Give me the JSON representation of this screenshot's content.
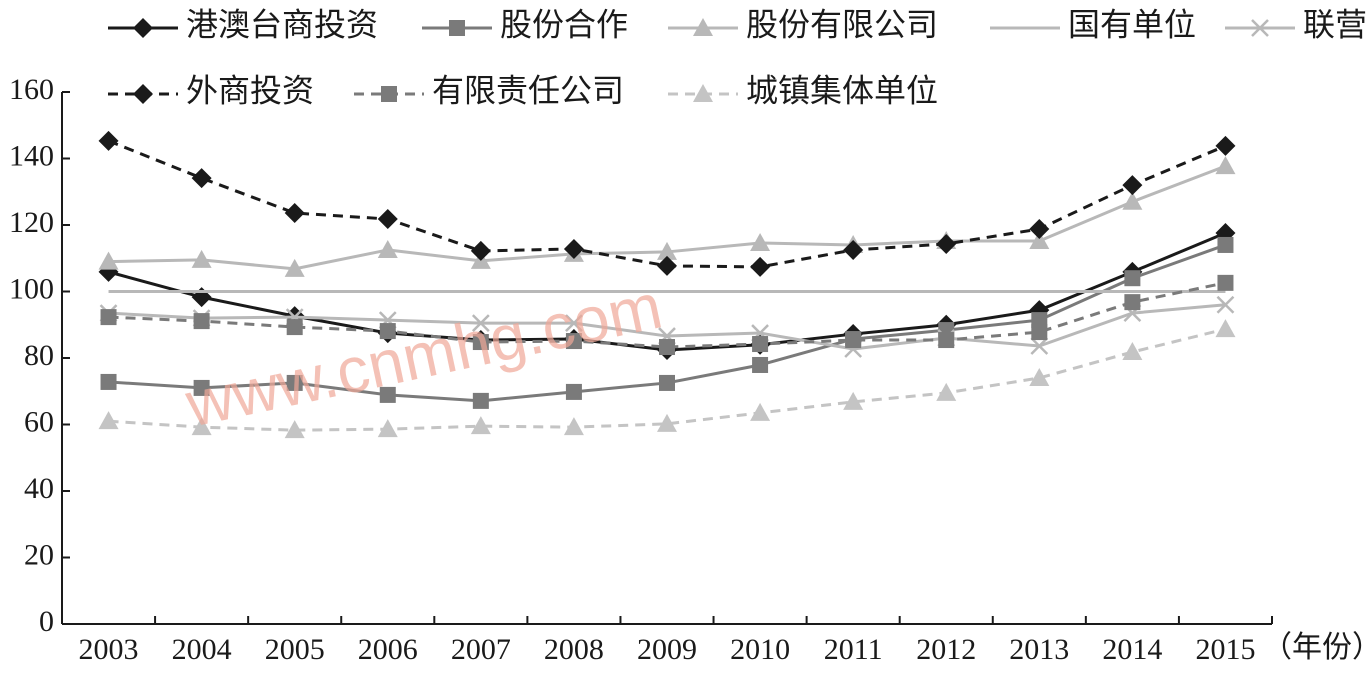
{
  "chart_data": {
    "type": "line",
    "x_label": "（年份）",
    "watermark": "www.cnmhg.com",
    "categories": [
      "2003",
      "2004",
      "2005",
      "2006",
      "2007",
      "2008",
      "2009",
      "2010",
      "2011",
      "2012",
      "2013",
      "2014",
      "2015"
    ],
    "ylim": [
      0,
      160
    ],
    "yticks": [
      0,
      20,
      40,
      60,
      80,
      100,
      120,
      140,
      160
    ],
    "series": [
      {
        "name": "港澳台商投资",
        "color": "#1a1a1a",
        "marker": "diamond",
        "dashed": false,
        "values": [
          105.9,
          98.3,
          92.6,
          87.5,
          85.4,
          85.7,
          82.4,
          84,
          87.2,
          90,
          94.4,
          105.9,
          117.6
        ]
      },
      {
        "name": "股份合作",
        "color": "#7a7a7a",
        "marker": "square",
        "dashed": false,
        "values": [
          72.8,
          71,
          72.5,
          68.9,
          67.1,
          69.8,
          72.5,
          77.9,
          85.7,
          88.4,
          91.4,
          104,
          114
        ]
      },
      {
        "name": "股份有限公司",
        "color": "#b8b8b8",
        "marker": "triangle",
        "dashed": false,
        "values": [
          109,
          109.5,
          106.8,
          112.5,
          109.2,
          111.3,
          111.9,
          114.6,
          114,
          115.2,
          115.2,
          127,
          137.7
        ]
      },
      {
        "name": "国有单位",
        "color": "#b8b8b8",
        "marker": "none",
        "dashed": false,
        "values": [
          100,
          100,
          100,
          100,
          100,
          100,
          100,
          100,
          100,
          100,
          100,
          100,
          100
        ]
      },
      {
        "name": "联营",
        "color": "#b8b8b8",
        "marker": "x",
        "dashed": false,
        "values": [
          93.5,
          92,
          92.3,
          91.4,
          90.5,
          90.5,
          86.6,
          87.5,
          82.7,
          86,
          83.6,
          93.5,
          96
        ]
      },
      {
        "name": "外商投资",
        "color": "#1a1a1a",
        "marker": "diamond",
        "dashed": true,
        "values": [
          145.3,
          134.1,
          123.6,
          121.8,
          112.2,
          112.8,
          107.7,
          107.4,
          112.5,
          114.3,
          118.8,
          132,
          143.8
        ]
      },
      {
        "name": "有限责任公司",
        "color": "#7a7a7a",
        "marker": "square",
        "dashed": true,
        "values": [
          92.3,
          91.1,
          89.3,
          88.1,
          84.8,
          85.1,
          83.3,
          84.2,
          85.4,
          85.4,
          87.8,
          96.8,
          102.6
        ]
      },
      {
        "name": "城镇集体单位",
        "color": "#c4c4c4",
        "marker": "triangle",
        "dashed": true,
        "values": [
          61,
          59.2,
          58.3,
          58.6,
          59.5,
          59.2,
          60.2,
          63.5,
          66.8,
          69.5,
          74,
          81.8,
          88.7
        ]
      }
    ]
  }
}
